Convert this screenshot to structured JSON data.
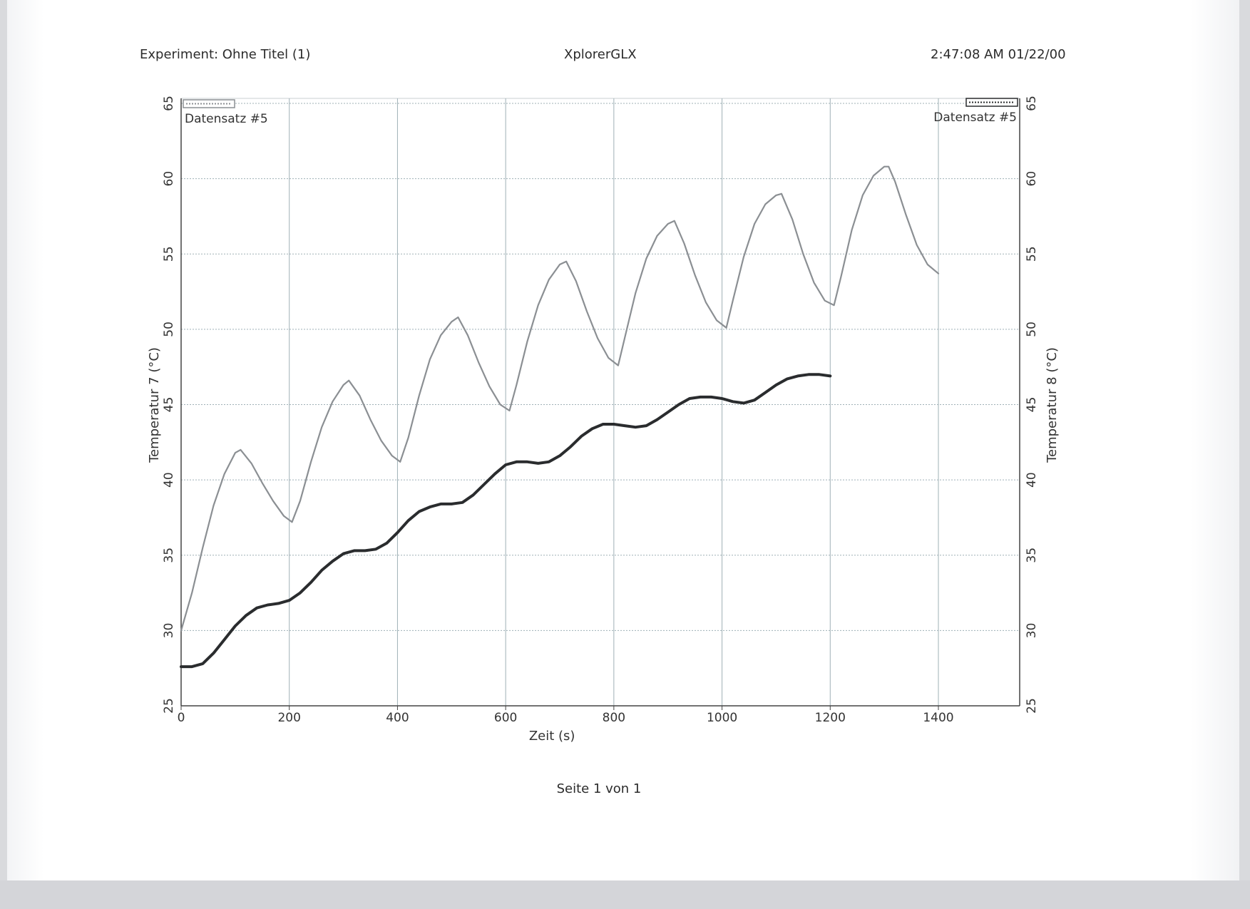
{
  "header": {
    "experiment": "Experiment: Ohne Titel (1)",
    "app_name": "XplorerGLX",
    "timestamp": "2:47:08 AM  01/22/00"
  },
  "footer": {
    "page_label": "Seite 1 von 1"
  },
  "colors": {
    "series_light": "#8b8f93",
    "series_dark": "#2a2c2e",
    "grid": "#9fb0b6",
    "axis": "#444444"
  },
  "chart_data": {
    "type": "line",
    "xlabel": "Zeit (s)",
    "ylabel_left": "Temperatur 7 (°C)",
    "ylabel_right": "Temperatur 8 (°C)",
    "xlim": [
      0,
      1400
    ],
    "ylim": [
      25,
      65
    ],
    "x_ticks": [
      "0",
      "200",
      "400",
      "600",
      "800",
      "1000",
      "1200",
      "1400"
    ],
    "y_ticks": [
      "25",
      "30",
      "35",
      "40",
      "45",
      "50",
      "55",
      "60",
      "65"
    ],
    "grid": true,
    "legend_left": "Datensatz #5",
    "legend_right": "Datensatz #5",
    "series": [
      {
        "axis": "left",
        "points": [
          [
            0,
            30
          ],
          [
            20,
            32.5
          ],
          [
            40,
            35.5
          ],
          [
            60,
            38.3
          ],
          [
            80,
            40.4
          ],
          [
            100,
            41.8
          ],
          [
            110,
            42
          ],
          [
            130,
            41.1
          ],
          [
            150,
            39.8
          ],
          [
            170,
            38.6
          ],
          [
            190,
            37.6
          ],
          [
            205,
            37.2
          ],
          [
            220,
            38.6
          ],
          [
            240,
            41.2
          ],
          [
            260,
            43.5
          ],
          [
            280,
            45.2
          ],
          [
            300,
            46.3
          ],
          [
            310,
            46.6
          ],
          [
            330,
            45.6
          ],
          [
            350,
            44.0
          ],
          [
            370,
            42.6
          ],
          [
            390,
            41.6
          ],
          [
            405,
            41.2
          ],
          [
            420,
            42.8
          ],
          [
            440,
            45.6
          ],
          [
            460,
            48.0
          ],
          [
            480,
            49.6
          ],
          [
            500,
            50.5
          ],
          [
            512,
            50.8
          ],
          [
            530,
            49.6
          ],
          [
            550,
            47.8
          ],
          [
            570,
            46.2
          ],
          [
            590,
            45.0
          ],
          [
            607,
            44.6
          ],
          [
            620,
            46.3
          ],
          [
            640,
            49.2
          ],
          [
            660,
            51.6
          ],
          [
            680,
            53.3
          ],
          [
            700,
            54.3
          ],
          [
            712,
            54.5
          ],
          [
            730,
            53.2
          ],
          [
            750,
            51.2
          ],
          [
            770,
            49.4
          ],
          [
            790,
            48.1
          ],
          [
            808,
            47.6
          ],
          [
            820,
            49.4
          ],
          [
            840,
            52.4
          ],
          [
            860,
            54.7
          ],
          [
            880,
            56.2
          ],
          [
            900,
            57.0
          ],
          [
            912,
            57.2
          ],
          [
            930,
            55.7
          ],
          [
            950,
            53.6
          ],
          [
            970,
            51.8
          ],
          [
            990,
            50.6
          ],
          [
            1008,
            50.1
          ],
          [
            1020,
            51.9
          ],
          [
            1040,
            54.8
          ],
          [
            1060,
            57.0
          ],
          [
            1080,
            58.3
          ],
          [
            1100,
            58.9
          ],
          [
            1110,
            59.0
          ],
          [
            1130,
            57.3
          ],
          [
            1150,
            55.0
          ],
          [
            1170,
            53.1
          ],
          [
            1190,
            51.9
          ],
          [
            1207,
            51.6
          ],
          [
            1220,
            53.5
          ],
          [
            1240,
            56.6
          ],
          [
            1260,
            58.9
          ],
          [
            1280,
            60.2
          ],
          [
            1300,
            60.8
          ],
          [
            1308,
            60.8
          ],
          [
            1320,
            59.8
          ],
          [
            1340,
            57.6
          ],
          [
            1360,
            55.6
          ],
          [
            1380,
            54.3
          ],
          [
            1400,
            53.7
          ]
        ]
      },
      {
        "axis": "right",
        "points": [
          [
            0,
            27.6
          ],
          [
            20,
            27.6
          ],
          [
            40,
            27.8
          ],
          [
            60,
            28.5
          ],
          [
            80,
            29.4
          ],
          [
            100,
            30.3
          ],
          [
            120,
            31.0
          ],
          [
            140,
            31.5
          ],
          [
            160,
            31.7
          ],
          [
            180,
            31.8
          ],
          [
            200,
            32.0
          ],
          [
            220,
            32.5
          ],
          [
            240,
            33.2
          ],
          [
            260,
            34.0
          ],
          [
            280,
            34.6
          ],
          [
            300,
            35.1
          ],
          [
            320,
            35.3
          ],
          [
            340,
            35.3
          ],
          [
            360,
            35.4
          ],
          [
            380,
            35.8
          ],
          [
            400,
            36.5
          ],
          [
            420,
            37.3
          ],
          [
            440,
            37.9
          ],
          [
            460,
            38.2
          ],
          [
            480,
            38.4
          ],
          [
            500,
            38.4
          ],
          [
            520,
            38.5
          ],
          [
            540,
            39.0
          ],
          [
            560,
            39.7
          ],
          [
            580,
            40.4
          ],
          [
            600,
            41.0
          ],
          [
            620,
            41.2
          ],
          [
            640,
            41.2
          ],
          [
            660,
            41.1
          ],
          [
            680,
            41.2
          ],
          [
            700,
            41.6
          ],
          [
            720,
            42.2
          ],
          [
            740,
            42.9
          ],
          [
            760,
            43.4
          ],
          [
            780,
            43.7
          ],
          [
            800,
            43.7
          ],
          [
            820,
            43.6
          ],
          [
            840,
            43.5
          ],
          [
            860,
            43.6
          ],
          [
            880,
            44.0
          ],
          [
            900,
            44.5
          ],
          [
            920,
            45.0
          ],
          [
            940,
            45.4
          ],
          [
            960,
            45.5
          ],
          [
            980,
            45.5
          ],
          [
            1000,
            45.4
          ],
          [
            1020,
            45.2
          ],
          [
            1040,
            45.1
          ],
          [
            1060,
            45.3
          ],
          [
            1080,
            45.8
          ],
          [
            1100,
            46.3
          ],
          [
            1120,
            46.7
          ],
          [
            1140,
            46.9
          ],
          [
            1160,
            47.0
          ],
          [
            1180,
            47.0
          ],
          [
            1200,
            46.9
          ]
        ]
      }
    ]
  }
}
